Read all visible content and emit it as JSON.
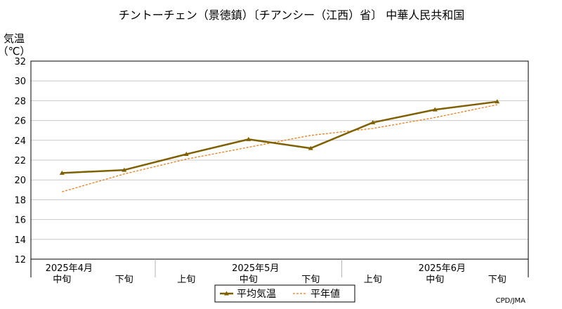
{
  "chart_data": {
    "type": "line",
    "title": "チントーチェン（景徳鎮）〔チアンシー（江西）省〕 中華人民共和国",
    "ylabel_line1": "気温",
    "ylabel_line2": "（℃）",
    "ylim": [
      12,
      32
    ],
    "yticks": [
      12,
      14,
      16,
      18,
      20,
      22,
      24,
      26,
      28,
      30,
      32
    ],
    "categories": [
      "中旬",
      "下旬",
      "上旬",
      "中旬",
      "下旬",
      "上旬",
      "中旬",
      "下旬"
    ],
    "month_labels": [
      {
        "label": "2025年4月",
        "index": 0
      },
      {
        "label": "2025年5月",
        "index": 3
      },
      {
        "label": "2025年6月",
        "index": 6
      }
    ],
    "series": [
      {
        "name": "平均気温",
        "color": "#7f6000",
        "style": "solid-triangle",
        "values": [
          20.7,
          21.0,
          22.6,
          24.1,
          23.2,
          25.8,
          27.1,
          27.9
        ]
      },
      {
        "name": "平年値",
        "color": "#e87d1e",
        "style": "dashed",
        "values": [
          18.8,
          20.6,
          22.1,
          23.3,
          24.5,
          25.2,
          26.3,
          27.6
        ]
      }
    ],
    "grid": true,
    "legend_position": "bottom-center"
  },
  "credit": "CPD/JMA"
}
